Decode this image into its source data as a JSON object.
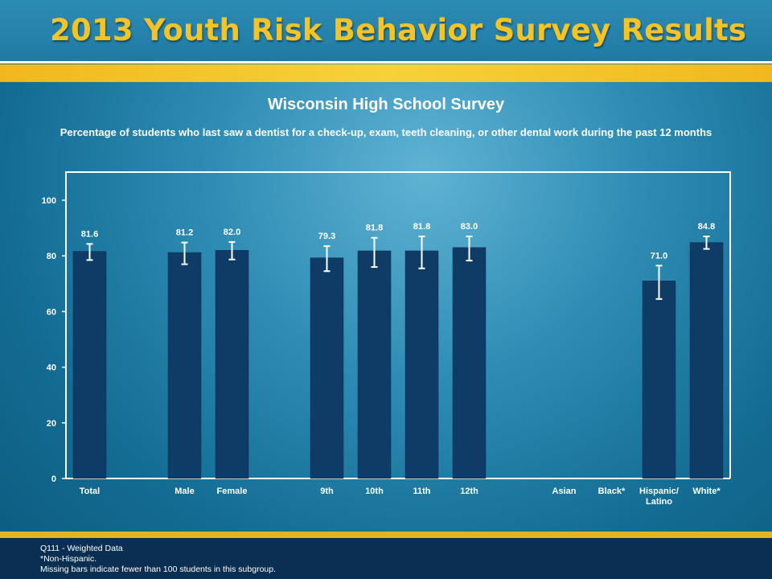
{
  "header": {
    "title": "2013 Youth Risk Behavior Survey Results"
  },
  "colors": {
    "bar": "#0f3c66",
    "axis": "#ffffff",
    "header_text": "#f2c428",
    "gold_rule": "#f0b81e",
    "footer": "#0b2f52"
  },
  "chart_data": {
    "type": "bar",
    "title": "Wisconsin High School Survey",
    "subtitle": "Percentage of students who last saw a dentist for a check-up, exam, teeth cleaning, or other dental work during the past 12 months",
    "categories": [
      "Total",
      "",
      "Male",
      "Female",
      "",
      "9th",
      "10th",
      "11th",
      "12th",
      "",
      "Asian",
      "Black*",
      "Hispanic/ Latino",
      "White*"
    ],
    "values": [
      81.6,
      null,
      81.2,
      82.0,
      null,
      79.3,
      81.8,
      81.8,
      83.0,
      null,
      null,
      null,
      71.0,
      84.8
    ],
    "value_labels": [
      "81.6",
      "",
      "81.2",
      "82.0",
      "",
      "79.3",
      "81.8",
      "81.8",
      "83.0",
      "",
      "",
      "",
      "71.0",
      "84.8"
    ],
    "error_low": [
      78.5,
      null,
      77.0,
      78.7,
      null,
      74.5,
      76.0,
      75.5,
      78.3,
      null,
      null,
      null,
      64.5,
      82.5
    ],
    "error_high": [
      84.3,
      null,
      84.8,
      85.0,
      null,
      83.5,
      86.5,
      87.0,
      87.0,
      null,
      null,
      null,
      76.5,
      87.0
    ],
    "ylim": [
      0,
      100
    ],
    "yticks": [
      "0",
      "20",
      "40",
      "60",
      "80",
      "100"
    ],
    "xlabel": "",
    "ylabel": "",
    "grid": false,
    "legend": "none"
  },
  "footnotes": [
    "Q111 - Weighted Data",
    "*Non-Hispanic.",
    "Missing bars indicate fewer than 100 students in this subgroup."
  ]
}
